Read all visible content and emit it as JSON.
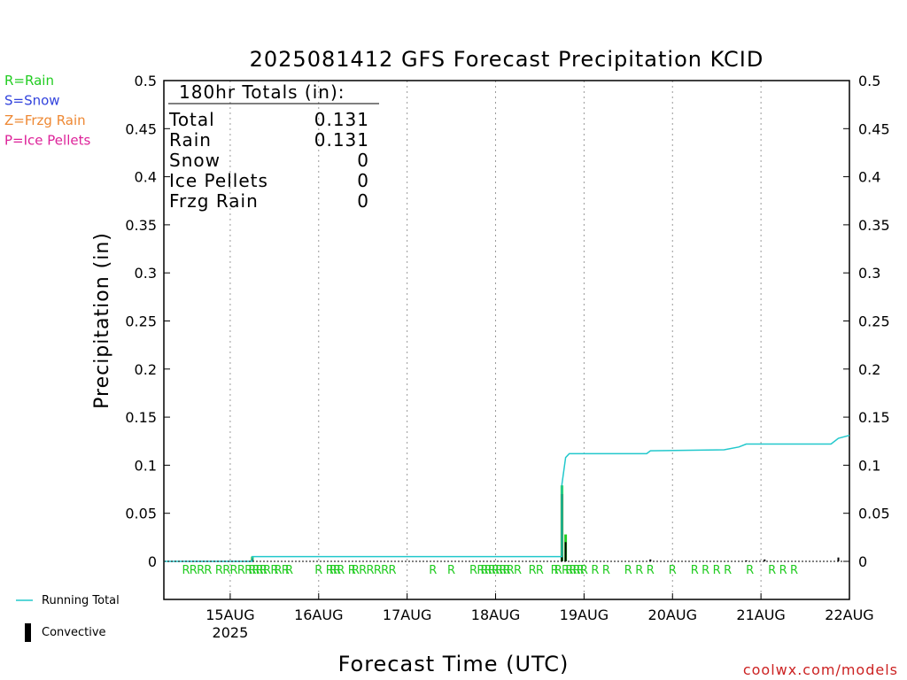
{
  "chart_data": {
    "type": "line",
    "title": "2025081412 GFS Forecast Precipitation KCID",
    "xlabel": "Forecast Time (UTC)",
    "ylabel": "Precipitation (in)",
    "credit": "coolwx.com/models",
    "ylim": [
      0,
      0.5
    ],
    "yticks": [
      "0",
      "0.05",
      "0.1",
      "0.15",
      "0.2",
      "0.25",
      "0.3",
      "0.35",
      "0.4",
      "0.45",
      "0.5"
    ],
    "xlim_hours": [
      -6,
      180
    ],
    "xticks": [
      {
        "label": "15AUG",
        "sub": "2025",
        "hour": 12
      },
      {
        "label": "16AUG",
        "sub": "",
        "hour": 36
      },
      {
        "label": "17AUG",
        "sub": "",
        "hour": 60
      },
      {
        "label": "18AUG",
        "sub": "",
        "hour": 84
      },
      {
        "label": "19AUG",
        "sub": "",
        "hour": 108
      },
      {
        "label": "20AUG",
        "sub": "",
        "hour": 132
      },
      {
        "label": "21AUG",
        "sub": "",
        "hour": 156
      },
      {
        "label": "22AUG",
        "sub": "",
        "hour": 180
      }
    ],
    "ptype_legend": [
      {
        "text": "R=Rain",
        "color": "#22cc22"
      },
      {
        "text": "S=Snow",
        "color": "#3344dd"
      },
      {
        "text": "Z=Frzg Rain",
        "color": "#ee8833"
      },
      {
        "text": "P=Ice Pellets",
        "color": "#dd2299"
      }
    ],
    "series_legend": [
      {
        "text": "Running Total",
        "color": "#22c8cc",
        "kind": "line"
      },
      {
        "text": "Convective",
        "color": "#000000",
        "kind": "bar"
      }
    ],
    "totals": {
      "header": "180hr Totals (in):",
      "rows": [
        {
          "label": "Total",
          "value": "0.131"
        },
        {
          "label": "Rain",
          "value": "0.131"
        },
        {
          "label": "Snow",
          "value": "0"
        },
        {
          "label": "Ice Pellets",
          "value": "0"
        },
        {
          "label": "Frzg Rain",
          "value": "0"
        }
      ]
    },
    "series": [
      {
        "name": "Running Total",
        "color": "#22c8cc",
        "hours": [
          -6,
          18,
          18,
          102,
          102,
          103,
          104,
          125,
          126,
          146,
          150,
          152,
          175,
          177,
          180
        ],
        "values": [
          0.0,
          0.0,
          0.005,
          0.005,
          0.08,
          0.108,
          0.112,
          0.112,
          0.115,
          0.116,
          0.119,
          0.122,
          0.122,
          0.128,
          0.131
        ]
      },
      {
        "name": "Convective",
        "color": "#000000",
        "hours": [
          18,
          102,
          103,
          126,
          152,
          157,
          177
        ],
        "values": [
          0.003,
          0.07,
          0.02,
          0.002,
          0.001,
          0.002,
          0.004
        ]
      },
      {
        "name": "Rain",
        "color": "#22cc22",
        "hours": [
          18,
          102,
          103
        ],
        "values": [
          0.005,
          0.079,
          0.028
        ]
      }
    ],
    "ptype_marks": {
      "symbol": "R",
      "hours": [
        0,
        2,
        4,
        6,
        9,
        11,
        13,
        15,
        17,
        18,
        19,
        20,
        21,
        22,
        24,
        25,
        27,
        28,
        36,
        39,
        40,
        41,
        42,
        45,
        46,
        48,
        50,
        52,
        54,
        56,
        67,
        72,
        78,
        80,
        81,
        82,
        83,
        84,
        85,
        86,
        87,
        88,
        90,
        94,
        96,
        100,
        101,
        103,
        104,
        105,
        106,
        107,
        108,
        111,
        114,
        120,
        123,
        126,
        132,
        138,
        141,
        144,
        147,
        153,
        159,
        162,
        165
      ]
    }
  }
}
